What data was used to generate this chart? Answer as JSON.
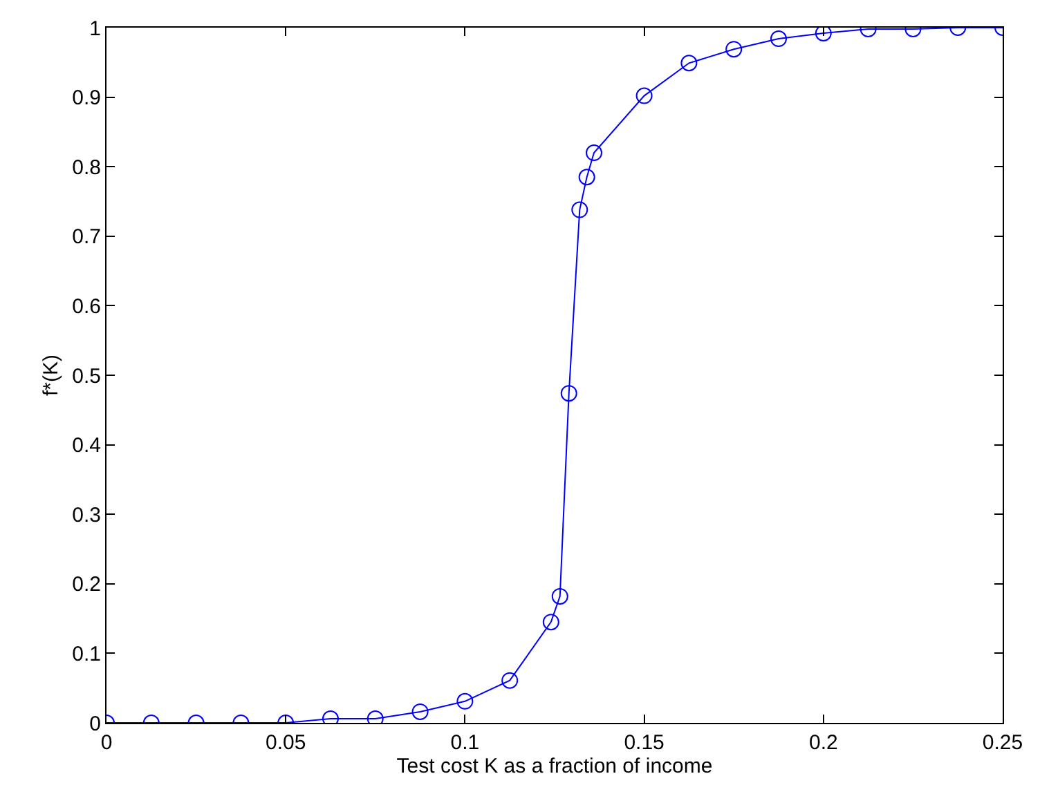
{
  "chart_data": {
    "type": "line",
    "xlabel": "Test cost K as a fraction of income",
    "ylabel": "f*(K)",
    "x": [
      0,
      0.0125,
      0.025,
      0.0375,
      0.05,
      0.0625,
      0.075,
      0.0875,
      0.1,
      0.1125,
      0.124,
      0.1265,
      0.129,
      0.132,
      0.134,
      0.136,
      0.15,
      0.1625,
      0.175,
      0.1875,
      0.2,
      0.2125,
      0.225,
      0.2375,
      0.25
    ],
    "series": [
      {
        "color": "#0000ff",
        "values": [
          0,
          0,
          0,
          0,
          0,
          0.006,
          0.006,
          0.016,
          0.031,
          0.061,
          0.145,
          0.182,
          0.474,
          0.738,
          0.785,
          0.82,
          0.902,
          0.949,
          0.969,
          0.984,
          0.992,
          0.998,
          0.998,
          1.0,
          1.0
        ]
      }
    ],
    "xlim": [
      0,
      0.25
    ],
    "xticks": [
      0,
      0.05,
      0.1,
      0.15,
      0.2,
      0.25
    ],
    "ylim": [
      0,
      1
    ],
    "yticks": [
      0,
      0.1,
      0.2,
      0.3,
      0.4,
      0.5,
      0.6,
      0.7,
      0.8,
      0.9,
      1
    ],
    "legend": false,
    "marker": "circle",
    "line_style": "solid"
  }
}
